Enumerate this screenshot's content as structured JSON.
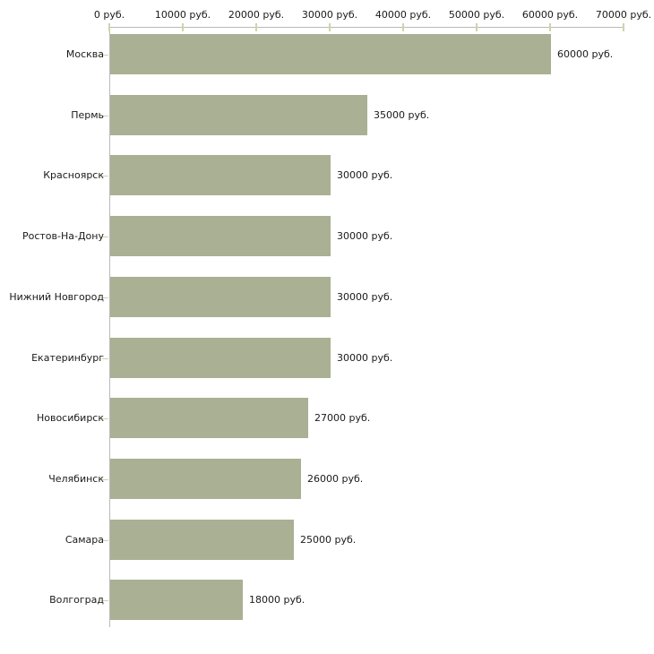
{
  "chart_data": {
    "type": "bar",
    "orientation": "horizontal",
    "title": "",
    "categories": [
      "Москва",
      "Пермь",
      "Красноярск",
      "Ростов-На-Дону",
      "Нижний Новгород",
      "Екатеринбург",
      "Новосибирск",
      "Челябинск",
      "Самара",
      "Волгоград"
    ],
    "values": [
      60000,
      35000,
      30000,
      30000,
      30000,
      30000,
      27000,
      26000,
      25000,
      18000
    ],
    "value_labels": [
      "60000 руб.",
      "35000 руб.",
      "30000 руб.",
      "30000 руб.",
      "30000 руб.",
      "30000 руб.",
      "27000 руб.",
      "26000 руб.",
      "25000 руб.",
      "18000 руб."
    ],
    "unit": "руб.",
    "x_axis": {
      "position": "top",
      "range": [
        0,
        70000
      ],
      "tick_values": [
        0,
        10000,
        20000,
        30000,
        40000,
        50000,
        60000,
        70000
      ],
      "tick_labels": [
        "0 руб.",
        "10000 руб.",
        "20000 руб.",
        "30000 руб.",
        "40000 руб.",
        "50000 руб.",
        "60000 руб.",
        "70000 руб."
      ]
    },
    "grid": false,
    "legend": null,
    "colors": {
      "bar": "#a9b094",
      "axis_line": "#b9b9b9",
      "tick": "#d2d2a8",
      "text": "#1a1a1a",
      "background": "#ffffff"
    }
  }
}
